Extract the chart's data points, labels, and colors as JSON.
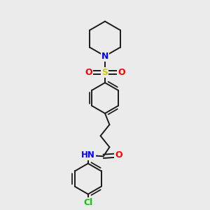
{
  "bg_color": "#ebebeb",
  "bond_color": "#1a1a1a",
  "N_color": "#0000ff",
  "O_color": "#ff0000",
  "S_color": "#cccc00",
  "Cl_color": "#00cc00",
  "H_color": "#555555",
  "figsize": [
    3.0,
    3.0
  ],
  "dpi": 100,
  "xlim": [
    0,
    10
  ],
  "ylim": [
    0,
    10
  ]
}
